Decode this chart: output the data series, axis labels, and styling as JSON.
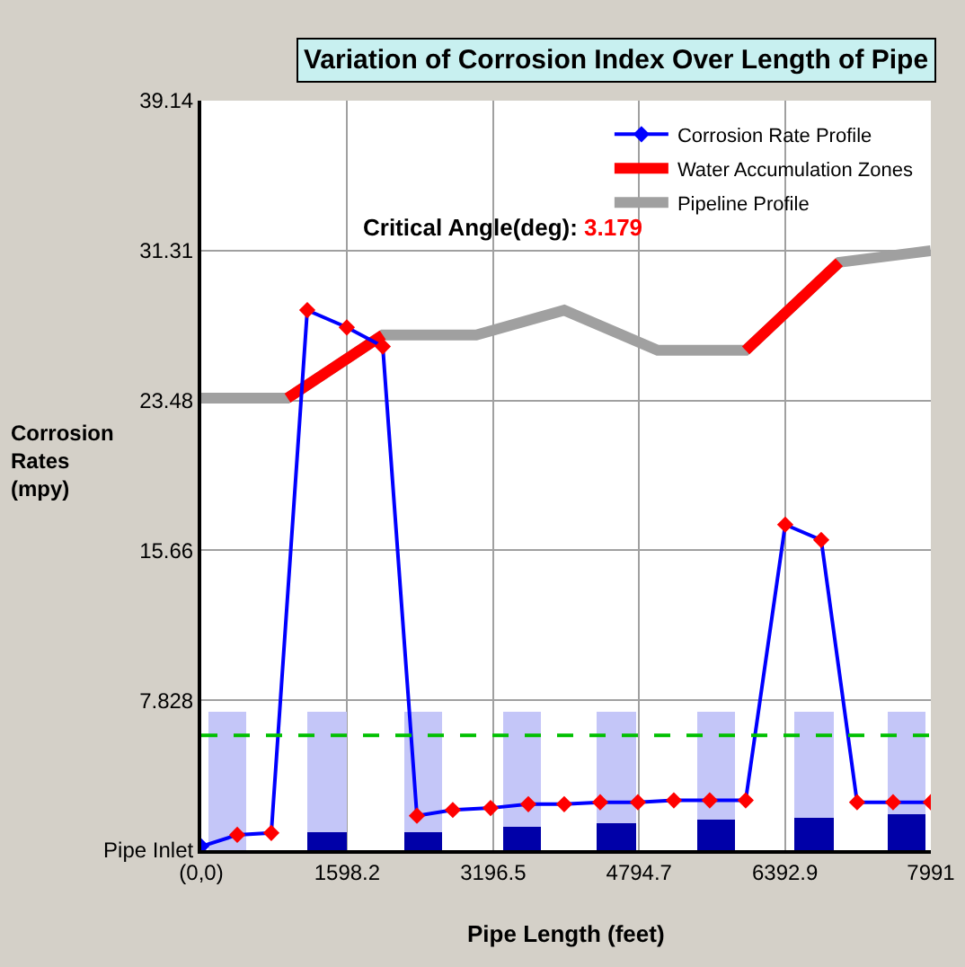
{
  "chart_data": {
    "type": "line",
    "title": "Variation of Corrosion Index Over Length of Pipe",
    "xlabel": "Pipe Length (feet)",
    "ylabel": "Corrosion Rates (mpy)",
    "xlim": [
      0,
      7991
    ],
    "ylim": [
      0,
      39.14
    ],
    "xticks": [
      {
        "value": 0,
        "label": "(0,0)"
      },
      1598.2,
      3196.5,
      4794.7,
      6392.9,
      7991
    ],
    "yticks": [
      {
        "value": 0,
        "label": "Pipe Inlet"
      },
      7.828,
      15.66,
      23.48,
      31.31,
      39.14
    ],
    "grid": true,
    "legend": "top right",
    "stacked": true,
    "series": [
      {
        "type": "bar",
        "color": "#0000a8",
        "x": [
          285,
          1378,
          2431,
          3513,
          4546,
          5638,
          6711,
          7724
        ],
        "values": [
          0,
          0.9,
          0.9,
          1.2,
          1.4,
          1.6,
          1.7,
          1.9
        ]
      },
      {
        "type": "bar",
        "color": "#c4c6f8",
        "x": [
          285,
          1378,
          2431,
          3513,
          4546,
          5638,
          6711,
          7724
        ],
        "values": [
          7.2,
          6.3,
          6.3,
          6.0,
          5.8,
          5.6,
          5.5,
          5.3
        ]
      },
      {
        "name": "Pipeline Profile",
        "color": "#a0a0a0",
        "x": [
          0,
          945,
          1988,
          3011,
          3975,
          4999,
          5963,
          6987,
          7990
        ],
        "values": [
          23.6,
          23.6,
          26.9,
          26.9,
          28.2,
          26.1,
          26.1,
          30.7,
          31.3
        ]
      },
      {
        "name": "Water Accumulation Zones",
        "color": "#ff0000",
        "x": [
          945,
          1988,
          3000,
          5963,
          6987
        ],
        "values": [
          23.6,
          26.9,
          null,
          26.1,
          30.7
        ]
      },
      {
        "name": "Corrosion Rate Profile",
        "color": "#0000ff",
        "marker": "diamond",
        "x": [
          0,
          394,
          767,
          1161,
          1594,
          1988,
          2362,
          2755,
          3169,
          3582,
          3975,
          4369,
          4782,
          5176,
          5569,
          5963,
          6396,
          6790,
          7183,
          7577,
          7990
        ],
        "values": [
          0.2,
          0.8,
          0.9,
          28.2,
          27.3,
          26.3,
          1.8,
          2.1,
          2.2,
          2.4,
          2.4,
          2.5,
          2.5,
          2.6,
          2.6,
          2.6,
          17.0,
          16.2,
          2.5,
          2.5,
          2.5
        ],
        "colors": [
          "#0000ff",
          "#ff0000",
          "#ff0000",
          "#ff0000",
          "#ff0000",
          "#ff0000",
          "#ff0000",
          "#ff0000",
          "#ff0000",
          "#ff0000",
          "#ff0000",
          "#ff0000",
          "#ff0000",
          "#ff0000",
          "#ff0000",
          "#ff0000",
          "#ff0000",
          "#ff0000",
          "#ff0000",
          "#ff0000",
          "#ff0000"
        ]
      }
    ],
    "ref_lines": [
      {
        "axis": "y",
        "value": 6.0,
        "color": "#00c000",
        "line_style": "dashed"
      }
    ],
    "annotations": [
      "Critical Angle(deg):",
      "3.179"
    ]
  }
}
